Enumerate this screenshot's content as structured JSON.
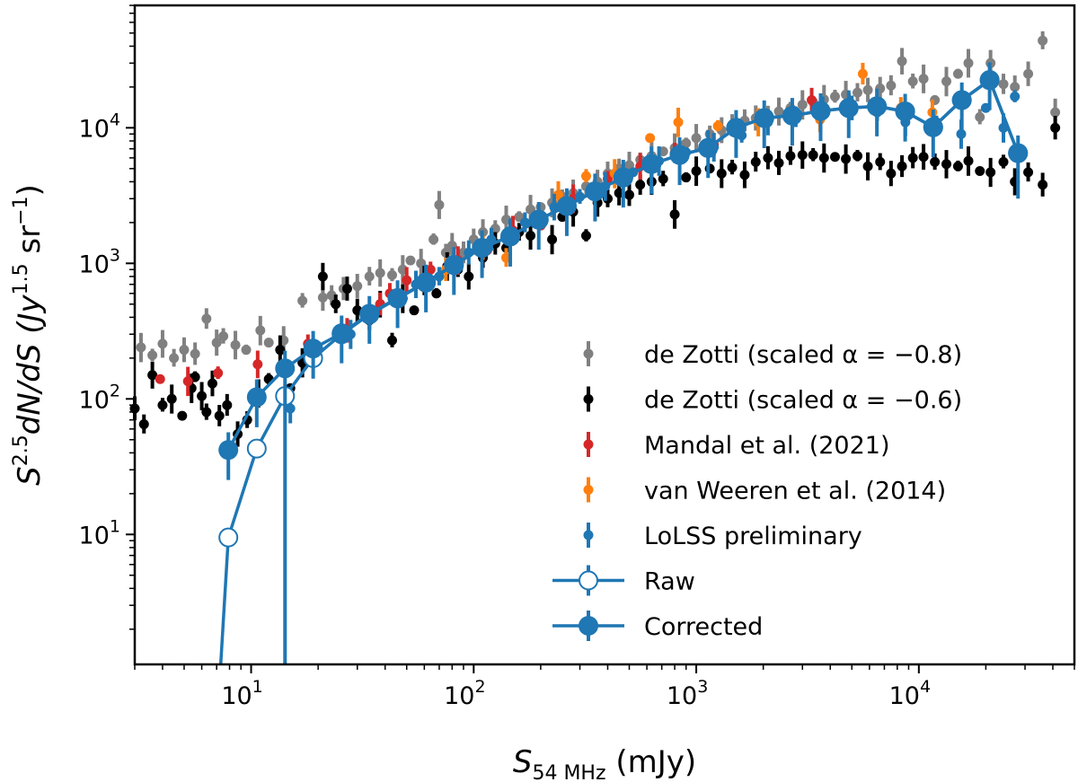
{
  "chart_data": {
    "type": "scatter",
    "xscale": "log",
    "yscale": "log",
    "xlim": [
      3,
      50000
    ],
    "ylim": [
      1.1,
      80000
    ],
    "xlabel": {
      "base": "S",
      "sub": "54 MHz",
      "unit": " (mJy)"
    },
    "ylabel": {
      "base": "S",
      "sup": "2.5",
      "rest": "dN/dS (Jy",
      "sup2": "1.5",
      "rest2": " sr",
      "sup3": "−1",
      "rest3": ")"
    },
    "xticks": [
      {
        "value": 10,
        "base": "10",
        "exp": "1"
      },
      {
        "value": 100,
        "base": "10",
        "exp": "2"
      },
      {
        "value": 1000,
        "base": "10",
        "exp": "3"
      },
      {
        "value": 10000,
        "base": "10",
        "exp": "4"
      }
    ],
    "yticks": [
      {
        "value": 10,
        "base": "10",
        "exp": "1"
      },
      {
        "value": 100,
        "base": "10",
        "exp": "2"
      },
      {
        "value": 1000,
        "base": "10",
        "exp": "3"
      },
      {
        "value": 10000,
        "base": "10",
        "exp": "4"
      }
    ],
    "legend": {
      "position": "lower-right",
      "entries": [
        {
          "label": "de Zotti (scaled α = −0.8)",
          "color": "#808080",
          "marker": "dot"
        },
        {
          "label": "de Zotti (scaled α = −0.6)",
          "color": "#000000",
          "marker": "dot"
        },
        {
          "label": "Mandal et al. (2021)",
          "color": "#d62728",
          "marker": "dot"
        },
        {
          "label": "van Weeren et al. (2014)",
          "color": "#ff7f0e",
          "marker": "dot"
        },
        {
          "label": "LoLSS preliminary",
          "color": "#1f77b4",
          "marker": "dot"
        },
        {
          "label": "Raw",
          "color": "#1f77b4",
          "marker": "open-circle-line"
        },
        {
          "label": "Corrected",
          "color": "#1f77b4",
          "marker": "filled-circle-line"
        }
      ]
    },
    "series": [
      {
        "name": "de Zotti (scaled α = −0.8)",
        "color": "#808080",
        "points": [
          [
            3.2,
            240
          ],
          [
            3.6,
            210
          ],
          [
            4.0,
            255
          ],
          [
            4.5,
            200
          ],
          [
            5.0,
            230
          ],
          [
            5.6,
            215
          ],
          [
            6.3,
            390
          ],
          [
            7.0,
            260
          ],
          [
            7.5,
            290
          ],
          [
            8.5,
            250
          ],
          [
            9.5,
            230
          ],
          [
            11.0,
            320
          ],
          [
            12.0,
            260
          ],
          [
            14.0,
            270
          ],
          [
            17.0,
            530
          ],
          [
            21.0,
            560
          ],
          [
            23.0,
            580
          ],
          [
            26.0,
            650
          ],
          [
            30.0,
            680
          ],
          [
            34.0,
            800
          ],
          [
            38.0,
            850
          ],
          [
            43.0,
            820
          ],
          [
            48.0,
            900
          ],
          [
            52.0,
            1050
          ],
          [
            58.0,
            1000
          ],
          [
            66.0,
            1500
          ],
          [
            70.0,
            2700
          ],
          [
            75.0,
            1200
          ],
          [
            80.0,
            1350
          ],
          [
            90.0,
            1200
          ],
          [
            100.0,
            1500
          ],
          [
            110.0,
            1700
          ],
          [
            125.0,
            1800
          ],
          [
            140.0,
            2100
          ],
          [
            160.0,
            2200
          ],
          [
            180.0,
            2500
          ],
          [
            200.0,
            2600
          ],
          [
            225.0,
            2800
          ],
          [
            250.0,
            3100
          ],
          [
            280.0,
            3300
          ],
          [
            320.0,
            3700
          ],
          [
            360.0,
            4000
          ],
          [
            400.0,
            4600
          ],
          [
            450.0,
            5000
          ],
          [
            500.0,
            5300
          ],
          [
            560.0,
            5800
          ],
          [
            630.0,
            6200
          ],
          [
            710.0,
            6700
          ],
          [
            800.0,
            7100
          ],
          [
            900.0,
            7700
          ],
          [
            1000.0,
            8400
          ],
          [
            1150.0,
            9000
          ],
          [
            1300.0,
            9600
          ],
          [
            1450.0,
            10500
          ],
          [
            1650.0,
            11300
          ],
          [
            1850.0,
            11800
          ],
          [
            2100.0,
            12500
          ],
          [
            2350.0,
            13200
          ],
          [
            2650.0,
            14000
          ],
          [
            3000.0,
            14800
          ],
          [
            3350.0,
            15500
          ],
          [
            3750.0,
            16200
          ],
          [
            4200.0,
            17000
          ],
          [
            4700.0,
            17600
          ],
          [
            5300.0,
            18200
          ],
          [
            5900.0,
            19000
          ],
          [
            6700.0,
            19500
          ],
          [
            7500.0,
            20500
          ],
          [
            8400.0,
            31000
          ],
          [
            9400.0,
            22000
          ],
          [
            10500.0,
            23000
          ],
          [
            11800.0,
            16000
          ],
          [
            13300.0,
            22000
          ],
          [
            15000.0,
            25000
          ],
          [
            16700.0,
            30000
          ],
          [
            18800.0,
            12000
          ],
          [
            21000.0,
            30000
          ],
          [
            24000.0,
            21000
          ],
          [
            27000.0,
            20000
          ],
          [
            31000.0,
            25000
          ],
          [
            36000.0,
            44000
          ],
          [
            41000.0,
            13000
          ]
        ]
      },
      {
        "name": "de Zotti (scaled α = −0.6)",
        "color": "#000000",
        "points": [
          [
            3.0,
            85
          ],
          [
            3.3,
            65
          ],
          [
            3.6,
            150
          ],
          [
            4.0,
            90
          ],
          [
            4.4,
            100
          ],
          [
            4.9,
            75
          ],
          [
            5.4,
            120
          ],
          [
            5.6,
            145
          ],
          [
            6.0,
            105
          ],
          [
            6.3,
            80
          ],
          [
            6.7,
            130
          ],
          [
            7.2,
            75
          ],
          [
            7.8,
            90
          ],
          [
            8.7,
            55
          ],
          [
            9.6,
            70
          ],
          [
            10.8,
            110
          ],
          [
            12.0,
            140
          ],
          [
            13.5,
            230
          ],
          [
            15.0,
            120
          ],
          [
            17.0,
            185
          ],
          [
            19.0,
            220
          ],
          [
            21.0,
            800
          ],
          [
            24.0,
            500
          ],
          [
            27.0,
            650
          ],
          [
            30.0,
            450
          ],
          [
            34.0,
            380
          ],
          [
            38.0,
            500
          ],
          [
            43.0,
            270
          ],
          [
            48.0,
            550
          ],
          [
            54.0,
            450
          ],
          [
            60.0,
            750
          ],
          [
            68.0,
            600
          ],
          [
            76.0,
            950
          ],
          [
            85.0,
            900
          ],
          [
            95.0,
            800
          ],
          [
            110.0,
            1100
          ],
          [
            125.0,
            1400
          ],
          [
            140.0,
            1300
          ],
          [
            160.0,
            1700
          ],
          [
            180.0,
            1600
          ],
          [
            200.0,
            2000
          ],
          [
            225.0,
            1500
          ],
          [
            250.0,
            2200
          ],
          [
            280.0,
            2400
          ],
          [
            320.0,
            1600
          ],
          [
            360.0,
            2800
          ],
          [
            400.0,
            3000
          ],
          [
            450.0,
            3300
          ],
          [
            500.0,
            3200
          ],
          [
            560.0,
            3800
          ],
          [
            630.0,
            4000
          ],
          [
            710.0,
            4200
          ],
          [
            800.0,
            2300
          ],
          [
            900.0,
            4300
          ],
          [
            1000.0,
            4800
          ],
          [
            1150.0,
            5000
          ],
          [
            1300.0,
            4600
          ],
          [
            1450.0,
            5100
          ],
          [
            1650.0,
            4500
          ],
          [
            1850.0,
            5600
          ],
          [
            2100.0,
            6000
          ],
          [
            2350.0,
            5500
          ],
          [
            2650.0,
            6200
          ],
          [
            3000.0,
            6300
          ],
          [
            3350.0,
            6300
          ],
          [
            3750.0,
            6000
          ],
          [
            4200.0,
            6100
          ],
          [
            4700.0,
            5900
          ],
          [
            5300.0,
            6200
          ],
          [
            5900.0,
            5200
          ],
          [
            6700.0,
            5600
          ],
          [
            7500.0,
            4600
          ],
          [
            8400.0,
            5200
          ],
          [
            9400.0,
            6000
          ],
          [
            10500.0,
            6100
          ],
          [
            11800.0,
            5600
          ],
          [
            13300.0,
            5400
          ],
          [
            15000.0,
            5200
          ],
          [
            16700.0,
            5700
          ],
          [
            18800.0,
            4800
          ],
          [
            21000.0,
            4700
          ],
          [
            24000.0,
            5600
          ],
          [
            27000.0,
            4000
          ],
          [
            31000.0,
            4700
          ],
          [
            36000.0,
            3800
          ],
          [
            41000.0,
            10000
          ]
        ]
      },
      {
        "name": "Mandal et al. (2021)",
        "color": "#d62728",
        "points": [
          [
            3.9,
            140
          ],
          [
            5.2,
            135
          ],
          [
            7.1,
            155
          ],
          [
            10.7,
            180
          ],
          [
            18.0,
            255
          ],
          [
            27.0,
            320
          ],
          [
            38.0,
            500
          ],
          [
            42.0,
            600
          ],
          [
            50.0,
            750
          ],
          [
            64.0,
            900
          ],
          [
            85.0,
            1050
          ],
          [
            115.0,
            1250
          ],
          [
            150.0,
            1750
          ],
          [
            200.0,
            1900
          ],
          [
            280.0,
            3000
          ],
          [
            400.0,
            4200
          ],
          [
            560.0,
            5200
          ],
          [
            800.0,
            6500
          ],
          [
            1200.0,
            7500
          ],
          [
            3300.0,
            16000
          ]
        ]
      },
      {
        "name": "van Weeren et al. (2014)",
        "color": "#ff7f0e",
        "points": [
          [
            75.0,
            900
          ],
          [
            110.0,
            1300
          ],
          [
            140.0,
            1100
          ],
          [
            240.0,
            3200
          ],
          [
            320.0,
            4400
          ],
          [
            430.0,
            4600
          ],
          [
            620.0,
            8400
          ],
          [
            830.0,
            11000
          ],
          [
            1250.0,
            10300
          ],
          [
            1900.0,
            11000
          ],
          [
            2600.0,
            12500
          ],
          [
            3600.0,
            11500
          ],
          [
            5600.0,
            25000
          ],
          [
            8300.0,
            14000
          ],
          [
            11500.0,
            13000
          ]
        ]
      },
      {
        "name": "LoLSS preliminary",
        "color": "#1f77b4",
        "points": [
          [
            15.0,
            85
          ],
          [
            19.0,
            220
          ],
          [
            28.0,
            300
          ],
          [
            45.0,
            520
          ],
          [
            55.0,
            700
          ],
          [
            70.0,
            800
          ],
          [
            95.0,
            1200
          ],
          [
            120.0,
            1500
          ],
          [
            170.0,
            2000
          ],
          [
            230.0,
            2600
          ],
          [
            300.0,
            3100
          ],
          [
            390.0,
            3700
          ],
          [
            520.0,
            4700
          ],
          [
            680.0,
            5700
          ],
          [
            900.0,
            6600
          ],
          [
            1200.0,
            7200
          ],
          [
            1600.0,
            8800
          ],
          [
            2100.0,
            11000
          ],
          [
            2800.0,
            12000
          ],
          [
            3700.0,
            14000
          ],
          [
            5000.0,
            14000
          ],
          [
            6500.0,
            13000
          ],
          [
            8700.0,
            11000
          ],
          [
            12000.0,
            11000
          ],
          [
            15500.0,
            9000
          ],
          [
            20000.0,
            14000
          ],
          [
            24000.0,
            10000
          ],
          [
            27000.0,
            17000
          ]
        ]
      }
    ],
    "raw": [
      [
        7.9,
        9.5
      ],
      [
        10.6,
        43
      ],
      [
        14.2,
        105
      ],
      [
        19.0,
        200
      ],
      [
        25.5,
        300
      ],
      [
        34.0,
        420
      ],
      [
        45.5,
        550
      ],
      [
        61.0,
        720
      ],
      [
        81.5,
        970
      ],
      [
        109.0,
        1300
      ],
      [
        146.0,
        1580
      ],
      [
        196.0,
        2100
      ],
      [
        262.0,
        2650
      ],
      [
        351.0,
        3400
      ],
      [
        470.0,
        4300
      ],
      [
        629.0,
        5400
      ],
      [
        842.0,
        6300
      ],
      [
        1130.0,
        7100
      ],
      [
        1510.0,
        10000
      ],
      [
        2020.0,
        11800
      ],
      [
        2700.0,
        12300
      ],
      [
        3620.0,
        13300
      ],
      [
        4840.0,
        14000
      ],
      [
        6480.0,
        14400
      ],
      [
        8680.0,
        13200
      ],
      [
        11600.0,
        10100
      ],
      [
        15600.0,
        16000
      ],
      [
        20800.0,
        22500
      ],
      [
        27900.0,
        6500
      ]
    ],
    "corrected": [
      [
        7.9,
        42
      ],
      [
        10.6,
        103
      ],
      [
        14.2,
        168
      ],
      [
        19.0,
        235
      ],
      [
        25.5,
        305
      ],
      [
        34.0,
        425
      ],
      [
        45.5,
        555
      ],
      [
        61.0,
        725
      ],
      [
        81.5,
        975
      ],
      [
        109.0,
        1300
      ],
      [
        146.0,
        1580
      ],
      [
        196.0,
        2100
      ],
      [
        262.0,
        2650
      ],
      [
        351.0,
        3400
      ],
      [
        470.0,
        4300
      ],
      [
        629.0,
        5400
      ],
      [
        842.0,
        6300
      ],
      [
        1130.0,
        7100
      ],
      [
        1510.0,
        10000
      ],
      [
        2020.0,
        11800
      ],
      [
        2700.0,
        12300
      ],
      [
        3620.0,
        13300
      ],
      [
        4840.0,
        14000
      ],
      [
        6480.0,
        14400
      ],
      [
        8680.0,
        13200
      ],
      [
        11600.0,
        10100
      ],
      [
        15600.0,
        16000
      ],
      [
        20800.0,
        22500
      ],
      [
        27900.0,
        6500
      ]
    ]
  }
}
